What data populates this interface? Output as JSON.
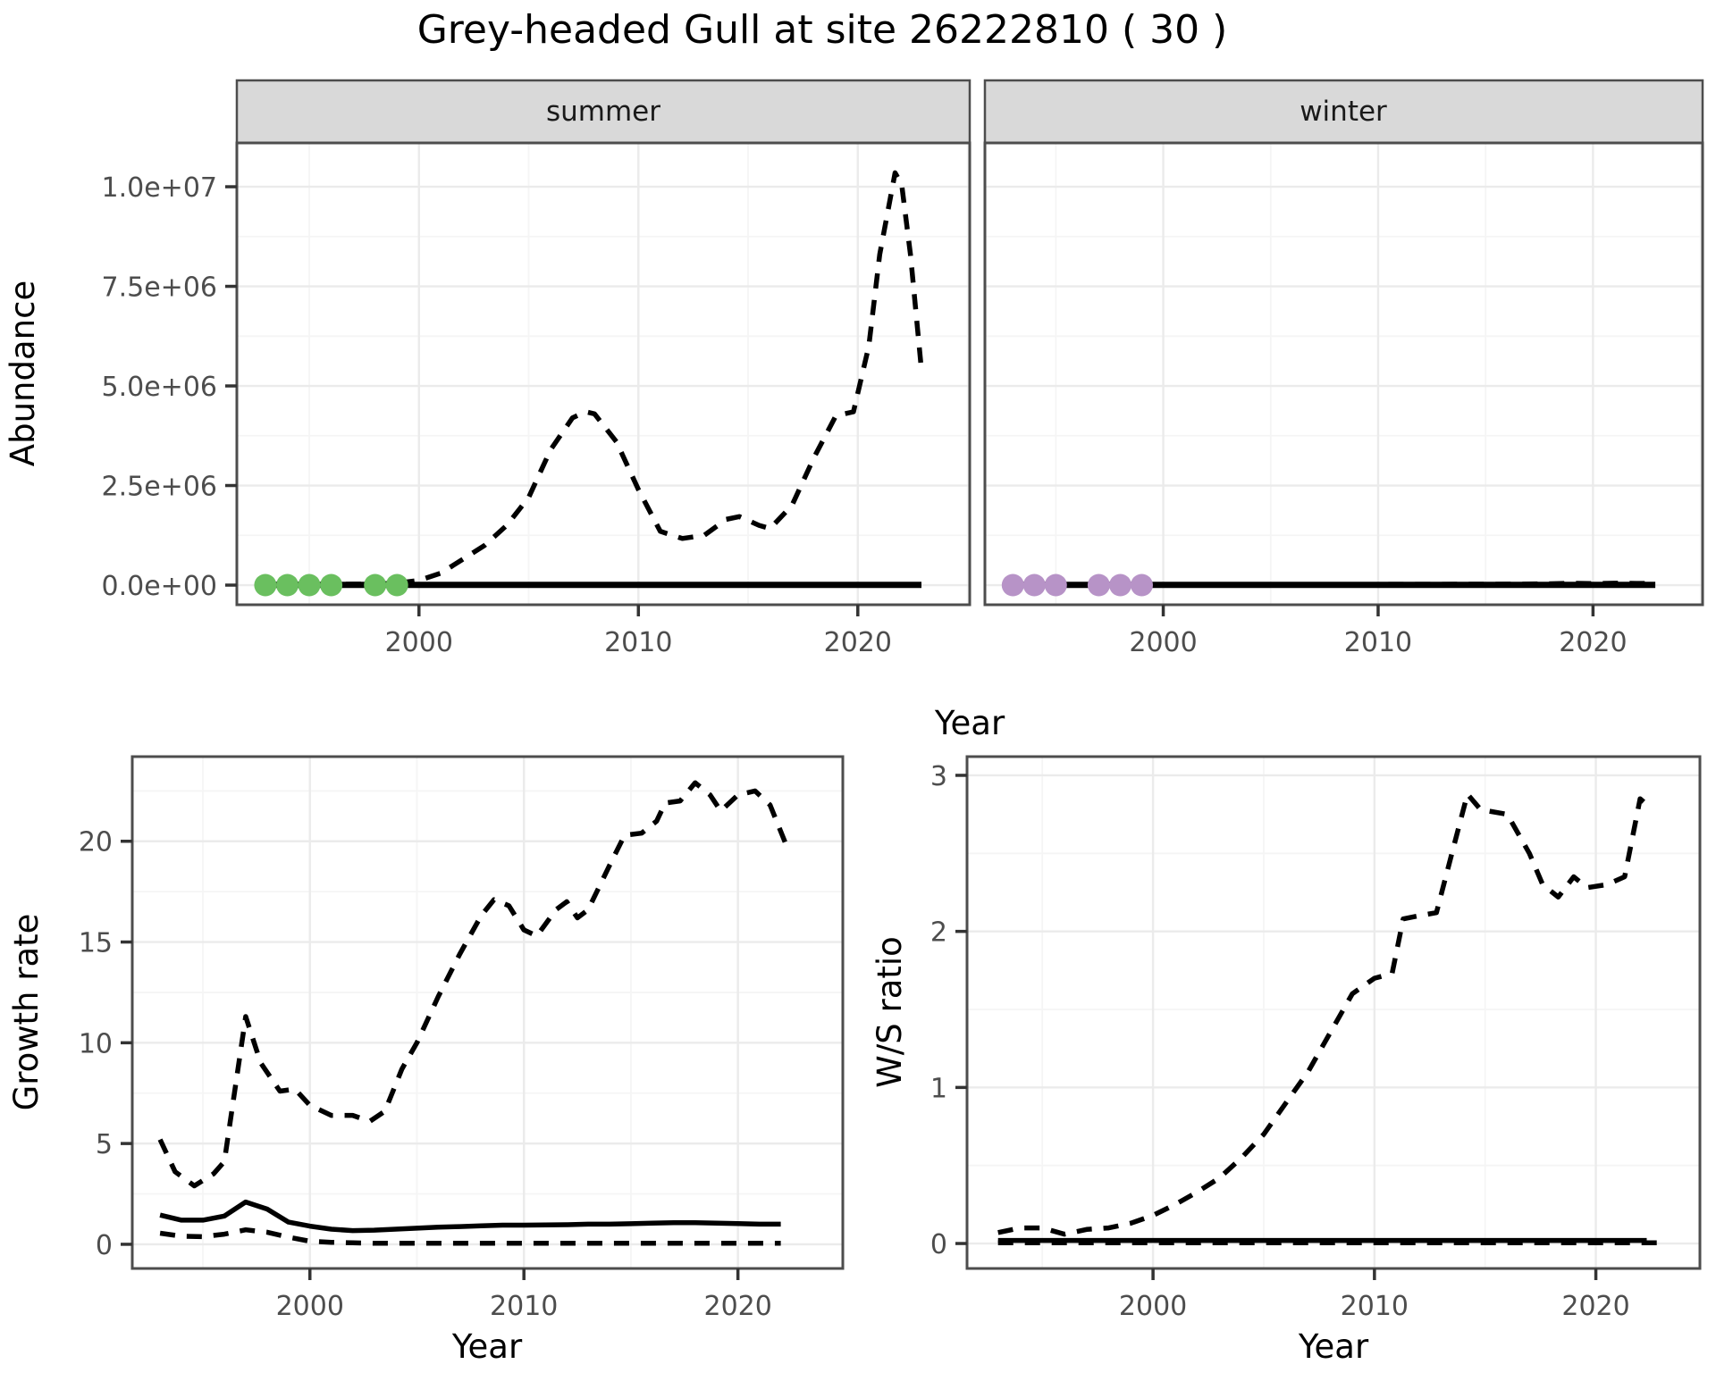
{
  "title": "Grey-headed Gull at site 26222810 ( 30 )",
  "top_row": {
    "y_label": "Abundance",
    "x_label": "Year",
    "facets": [
      {
        "label": "summer"
      },
      {
        "label": "winter"
      }
    ]
  },
  "bottom_row": {
    "growth": {
      "y_label": "Growth rate",
      "x_label": "Year"
    },
    "ws": {
      "y_label": "W/S ratio",
      "x_label": "Year"
    }
  },
  "colors": {
    "summer_points": "#6abf5f",
    "winter_points": "#b793c7",
    "line": "#000000",
    "grid_major": "#ebebeb",
    "grid_minor": "#f5f5f5",
    "panel_border": "#4d4d4d",
    "strip_bg": "#d9d9d9",
    "axis_text": "#4d4d4d",
    "tick_mark": "#333333"
  },
  "chart_data": [
    {
      "panel": "summer",
      "type": "line",
      "facet": "summer",
      "show_y_tick_labels": true,
      "x_ticks": {
        "major": [
          2000,
          2010,
          2020
        ],
        "labels": [
          "2000",
          "2010",
          "2020"
        ],
        "minor": [
          1995,
          2005,
          2015,
          2025
        ]
      },
      "y_ticks": {
        "major": [
          0,
          2500000,
          5000000,
          7500000,
          10000000
        ],
        "labels": [
          "0.0e+00",
          "2.5e+06",
          "5.0e+06",
          "7.5e+06",
          "1.0e+07"
        ],
        "minor": [
          1250000,
          3750000,
          6250000,
          8750000
        ]
      },
      "series": [
        {
          "name": "upper_ci",
          "style": "dashed",
          "width": 5.5,
          "points": [
            [
              1993,
              20000
            ],
            [
              1994,
              20000
            ],
            [
              1995,
              20000
            ],
            [
              1996,
              20000
            ],
            [
              1997,
              25000
            ],
            [
              1998,
              30000
            ],
            [
              1999,
              50000
            ],
            [
              2000,
              120000
            ],
            [
              2001,
              300000
            ],
            [
              2002,
              650000
            ],
            [
              2003,
              1000000
            ],
            [
              2004,
              1500000
            ],
            [
              2005,
              2200000
            ],
            [
              2006,
              3400000
            ],
            [
              2007,
              4200000
            ],
            [
              2007.6,
              4350000
            ],
            [
              2008,
              4300000
            ],
            [
              2009,
              3600000
            ],
            [
              2010,
              2400000
            ],
            [
              2011,
              1350000
            ],
            [
              2012,
              1170000
            ],
            [
              2013,
              1250000
            ],
            [
              2014,
              1650000
            ],
            [
              2014.6,
              1720000
            ],
            [
              2015.5,
              1500000
            ],
            [
              2016,
              1420000
            ],
            [
              2017,
              2000000
            ],
            [
              2018,
              3200000
            ],
            [
              2019,
              4250000
            ],
            [
              2019.8,
              4350000
            ],
            [
              2020.5,
              6000000
            ],
            [
              2021,
              8300000
            ],
            [
              2021.7,
              10350000
            ],
            [
              2022,
              10050000
            ],
            [
              2022.4,
              8300000
            ],
            [
              2022.9,
              5400000
            ]
          ]
        },
        {
          "name": "median",
          "style": "solid",
          "width": 7,
          "points": [
            [
              1993,
              8000
            ],
            [
              2000,
              8000
            ],
            [
              2010,
              8000
            ],
            [
              2022.9,
              8000
            ]
          ]
        }
      ],
      "scatter": {
        "name": "observed-years",
        "color": "#6abf5f",
        "radius": 12.5,
        "y": 0,
        "years": [
          1993,
          1994,
          1995,
          1996,
          1998,
          1999
        ]
      }
    },
    {
      "panel": "winter",
      "type": "line",
      "facet": "winter",
      "show_y_tick_labels": false,
      "x_ticks": {
        "major": [
          2000,
          2010,
          2020
        ],
        "labels": [
          "2000",
          "2010",
          "2020"
        ],
        "minor": [
          1995,
          2005,
          2015,
          2025
        ]
      },
      "y_ticks": {
        "major": [
          0,
          2500000,
          5000000,
          7500000,
          10000000
        ],
        "labels": [
          "0.0e+00",
          "2.5e+06",
          "5.0e+06",
          "7.5e+06",
          "1.0e+07"
        ],
        "minor": [
          1250000,
          3750000,
          6250000,
          8750000
        ]
      },
      "series": [
        {
          "name": "upper_ci",
          "style": "dashed",
          "width": 5.5,
          "points": [
            [
              1993,
              15000
            ],
            [
              2000,
              15000
            ],
            [
              2005,
              15000
            ],
            [
              2010,
              18000
            ],
            [
              2015,
              22000
            ],
            [
              2017,
              28000
            ],
            [
              2018,
              35000
            ],
            [
              2019,
              45000
            ],
            [
              2020,
              38000
            ],
            [
              2021,
              48000
            ],
            [
              2022,
              42000
            ],
            [
              2022.9,
              40000
            ]
          ]
        },
        {
          "name": "median",
          "style": "solid",
          "width": 7,
          "points": [
            [
              1993,
              7000
            ],
            [
              2000,
              7000
            ],
            [
              2010,
              7000
            ],
            [
              2022.9,
              7000
            ]
          ]
        }
      ],
      "scatter": {
        "name": "observed-years",
        "color": "#b793c7",
        "radius": 12.5,
        "y": 0,
        "years": [
          1993,
          1994,
          1995,
          1997,
          1998,
          1999
        ]
      }
    },
    {
      "panel": "growth",
      "type": "line",
      "facet": null,
      "show_y_tick_labels": true,
      "x_ticks": {
        "major": [
          2000,
          2010,
          2020
        ],
        "labels": [
          "2000",
          "2010",
          "2020"
        ],
        "minor": [
          1995,
          2005,
          2015
        ]
      },
      "y_ticks": {
        "major": [
          0,
          5,
          10,
          15,
          20
        ],
        "labels": [
          "0",
          "5",
          "10",
          "15",
          "20"
        ],
        "minor": [
          2.5,
          7.5,
          12.5,
          17.5,
          22.5
        ]
      },
      "series": [
        {
          "name": "upper_ci",
          "style": "dashed",
          "width": 5.5,
          "points": [
            [
              1993,
              5.2
            ],
            [
              1993.7,
              3.6
            ],
            [
              1994.6,
              2.9
            ],
            [
              1995.5,
              3.5
            ],
            [
              1996,
              4.1
            ],
            [
              1997,
              11.3
            ],
            [
              1997.7,
              9.0
            ],
            [
              1998.6,
              7.6
            ],
            [
              1999.3,
              7.7
            ],
            [
              2000,
              6.9
            ],
            [
              2001,
              6.4
            ],
            [
              2002,
              6.4
            ],
            [
              2002.8,
              6.1
            ],
            [
              2003.5,
              6.6
            ],
            [
              2004.3,
              8.7
            ],
            [
              2005,
              10.0
            ],
            [
              2006,
              12.3
            ],
            [
              2007,
              14.4
            ],
            [
              2008,
              16.3
            ],
            [
              2008.6,
              17.1
            ],
            [
              2009.3,
              16.8
            ],
            [
              2010,
              15.6
            ],
            [
              2010.6,
              15.3
            ],
            [
              2011.5,
              16.6
            ],
            [
              2012,
              17.0
            ],
            [
              2012.5,
              16.2
            ],
            [
              2013,
              16.6
            ],
            [
              2014,
              18.8
            ],
            [
              2014.7,
              20.3
            ],
            [
              2015.5,
              20.4
            ],
            [
              2016.2,
              21.0
            ],
            [
              2016.6,
              21.9
            ],
            [
              2017.3,
              22.0
            ],
            [
              2018,
              22.9
            ],
            [
              2018.7,
              22.3
            ],
            [
              2019.2,
              21.5
            ],
            [
              2020,
              22.3
            ],
            [
              2020.8,
              22.5
            ],
            [
              2021.5,
              21.8
            ],
            [
              2022.3,
              19.7
            ]
          ]
        },
        {
          "name": "median",
          "style": "solid",
          "width": 5.5,
          "points": [
            [
              1993,
              1.45
            ],
            [
              1994,
              1.2
            ],
            [
              1995,
              1.2
            ],
            [
              1996,
              1.4
            ],
            [
              1997,
              2.1
            ],
            [
              1998,
              1.75
            ],
            [
              1999,
              1.1
            ],
            [
              2000,
              0.9
            ],
            [
              2001,
              0.75
            ],
            [
              2002,
              0.68
            ],
            [
              2003,
              0.7
            ],
            [
              2004,
              0.75
            ],
            [
              2005,
              0.8
            ],
            [
              2006,
              0.85
            ],
            [
              2007,
              0.88
            ],
            [
              2008,
              0.92
            ],
            [
              2009,
              0.95
            ],
            [
              2010,
              0.95
            ],
            [
              2011,
              0.96
            ],
            [
              2012,
              0.97
            ],
            [
              2013,
              1.0
            ],
            [
              2014,
              1.0
            ],
            [
              2015,
              1.02
            ],
            [
              2016,
              1.05
            ],
            [
              2017,
              1.07
            ],
            [
              2018,
              1.07
            ],
            [
              2019,
              1.05
            ],
            [
              2020,
              1.03
            ],
            [
              2021,
              1.0
            ],
            [
              2022,
              1.0
            ]
          ]
        },
        {
          "name": "lower_ci",
          "style": "dashed",
          "width": 5.5,
          "points": [
            [
              1993,
              0.55
            ],
            [
              1994,
              0.4
            ],
            [
              1995,
              0.38
            ],
            [
              1996,
              0.5
            ],
            [
              1997,
              0.72
            ],
            [
              1998,
              0.6
            ],
            [
              1999,
              0.35
            ],
            [
              2000,
              0.15
            ],
            [
              2001,
              0.1
            ],
            [
              2002,
              0.07
            ],
            [
              2003,
              0.05
            ],
            [
              2006,
              0.05
            ],
            [
              2010,
              0.05
            ],
            [
              2015,
              0.05
            ],
            [
              2020,
              0.05
            ],
            [
              2022,
              0.05
            ]
          ]
        }
      ],
      "scatter": null
    },
    {
      "panel": "ws",
      "type": "line",
      "facet": null,
      "show_y_tick_labels": true,
      "x_ticks": {
        "major": [
          2000,
          2010,
          2020
        ],
        "labels": [
          "2000",
          "2010",
          "2020"
        ],
        "minor": [
          1995,
          2005,
          2015
        ]
      },
      "y_ticks": {
        "major": [
          0,
          1,
          2,
          3
        ],
        "labels": [
          "0",
          "1",
          "2",
          "3"
        ],
        "minor": [
          0.5,
          1.5,
          2.5
        ]
      },
      "series": [
        {
          "name": "upper_ci",
          "style": "dashed",
          "width": 5.5,
          "points": [
            [
              1993,
              0.07
            ],
            [
              1994,
              0.1
            ],
            [
              1995,
              0.1
            ],
            [
              1996,
              0.06
            ],
            [
              1997,
              0.09
            ],
            [
              1998,
              0.1
            ],
            [
              1999,
              0.13
            ],
            [
              2000,
              0.18
            ],
            [
              2001,
              0.25
            ],
            [
              2002,
              0.33
            ],
            [
              2003,
              0.42
            ],
            [
              2004,
              0.55
            ],
            [
              2005,
              0.7
            ],
            [
              2006,
              0.9
            ],
            [
              2007,
              1.1
            ],
            [
              2008,
              1.35
            ],
            [
              2009,
              1.6
            ],
            [
              2010,
              1.7
            ],
            [
              2010.8,
              1.73
            ],
            [
              2011.3,
              2.08
            ],
            [
              2012,
              2.1
            ],
            [
              2012.8,
              2.12
            ],
            [
              2013.5,
              2.5
            ],
            [
              2014.2,
              2.88
            ],
            [
              2014.8,
              2.78
            ],
            [
              2016,
              2.75
            ],
            [
              2017,
              2.5
            ],
            [
              2017.6,
              2.3
            ],
            [
              2018.3,
              2.22
            ],
            [
              2019,
              2.35
            ],
            [
              2019.6,
              2.28
            ],
            [
              2020.5,
              2.3
            ],
            [
              2021.3,
              2.35
            ],
            [
              2022,
              2.85
            ],
            [
              2022.4,
              2.8
            ]
          ]
        },
        {
          "name": "median",
          "style": "solid",
          "width": 5.5,
          "points": [
            [
              1993,
              0.02
            ],
            [
              2000,
              0.02
            ],
            [
              2010,
              0.02
            ],
            [
              2022.3,
              0.02
            ]
          ]
        },
        {
          "name": "lower_ci",
          "style": "dashed",
          "width": 5.5,
          "points": [
            [
              1993,
              0.004
            ],
            [
              2000,
              0.004
            ],
            [
              2010,
              0.004
            ],
            [
              2022.9,
              0.004
            ]
          ]
        }
      ],
      "scatter": null
    }
  ]
}
